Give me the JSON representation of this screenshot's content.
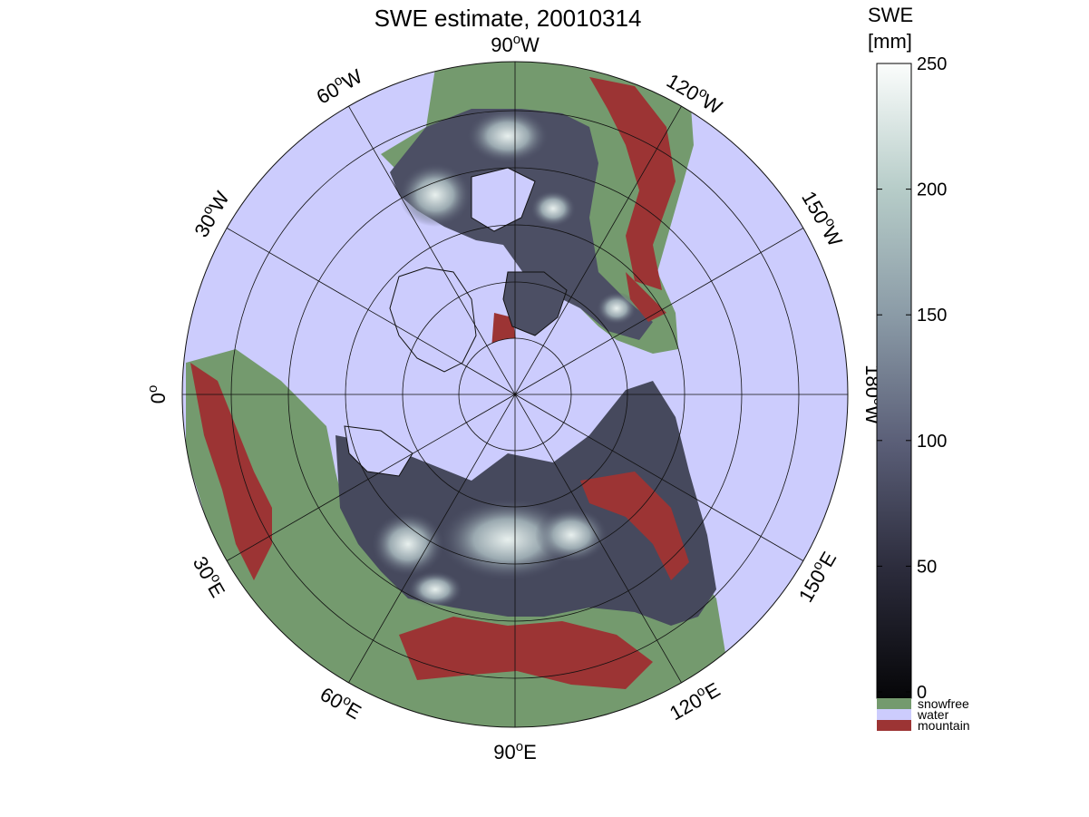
{
  "title": "SWE estimate, 20010314",
  "colorbar": {
    "label_line1": "SWE",
    "label_line2": "[mm]",
    "ticks": [
      "0",
      "50",
      "100",
      "150",
      "200",
      "250"
    ],
    "min": 0,
    "max": 250
  },
  "legend": {
    "items": [
      {
        "label": "snowfree",
        "color": "#749a6e"
      },
      {
        "label": "water",
        "color": "#ccccfd"
      },
      {
        "label": "mountain",
        "color": "#9c3434"
      }
    ]
  },
  "longitude_labels": {
    "lon_90W": "90",
    "lon_120W": "120",
    "lon_150W": "150",
    "lon_180W": "180",
    "lon_150E": "150",
    "lon_120E": "120",
    "lon_90E": "90",
    "lon_60E": "60",
    "lon_30E": "30",
    "lon_0": "0",
    "lon_30W": "30",
    "lon_60W": "60",
    "suffix_W": "W",
    "suffix_E": "E",
    "degree": "o"
  },
  "colors": {
    "water": "#ccccfd",
    "snowfree": "#749a6e",
    "mountain": "#9c3434",
    "snow_low": "#0b0b10",
    "snow_high": "#f4f9f9"
  }
}
